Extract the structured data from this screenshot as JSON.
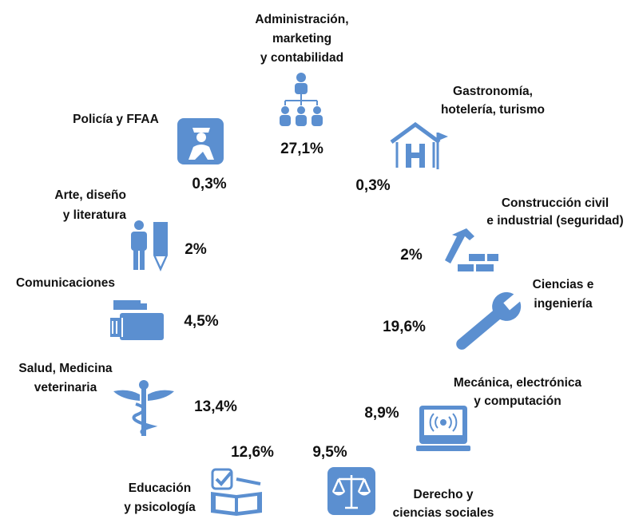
{
  "items": [
    {
      "label": [
        "Administración,",
        "marketing",
        "y contabilidad"
      ],
      "value": "27,1%"
    },
    {
      "label": [
        "Gastronomía,",
        "hotelería, turismo"
      ],
      "value": "0,3%"
    },
    {
      "label": [
        "Policía y FFAA"
      ],
      "value": "0,3%"
    },
    {
      "label": [
        "Arte, diseño",
        "y literatura"
      ],
      "value": "2%"
    },
    {
      "label": [
        "Construcción civil",
        "e industrial (seguridad)"
      ],
      "value": "2%"
    },
    {
      "label": [
        "Comunicaciones"
      ],
      "value": "4,5%"
    },
    {
      "label": [
        "Ciencias e",
        "ingeniería"
      ],
      "value": "19,6%"
    },
    {
      "label": [
        "Salud, Medicina",
        "veterinaria"
      ],
      "value": "13,4%"
    },
    {
      "label": [
        "Mecánica, electrónica",
        "y computación"
      ],
      "value": "8,9%"
    },
    {
      "label": [
        "Educación",
        "y psicología"
      ],
      "value": "12,6%"
    },
    {
      "label": [
        "Derecho y",
        "ciencias sociales"
      ],
      "value": "9,5%"
    }
  ]
}
